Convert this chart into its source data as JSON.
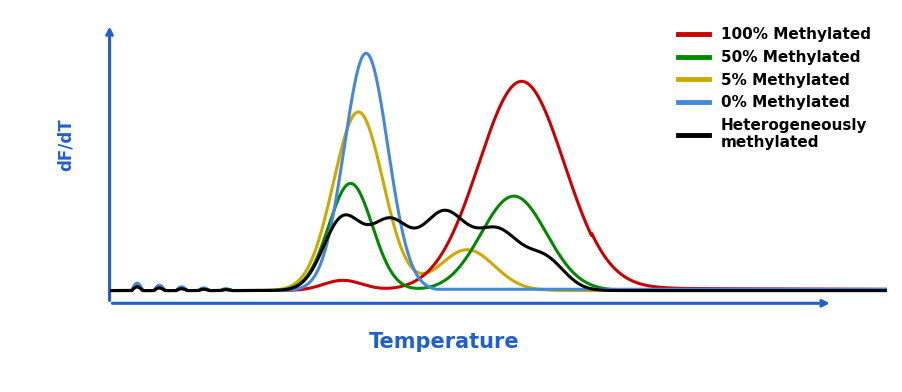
{
  "title": "",
  "xlabel": "Temperature",
  "ylabel": "dF/dT",
  "xlabel_color": "#2060cc",
  "ylabel_color": "#2060cc",
  "axis_color": "#2060cc",
  "background_color": "#ffffff",
  "legend_entries": [
    {
      "label": "100% Methylated",
      "color": "#cc0000"
    },
    {
      "label": "50% Methylated",
      "color": "#008800"
    },
    {
      "label": "5% Methylated",
      "color": "#ccaa00"
    },
    {
      "label": "0% Methylated",
      "color": "#4488dd"
    },
    {
      "label": "Heterogeneously\nmethylated",
      "color": "#000000"
    }
  ],
  "line_width": 2.2,
  "figsize": [
    9.02,
    3.92
  ],
  "dpi": 100
}
